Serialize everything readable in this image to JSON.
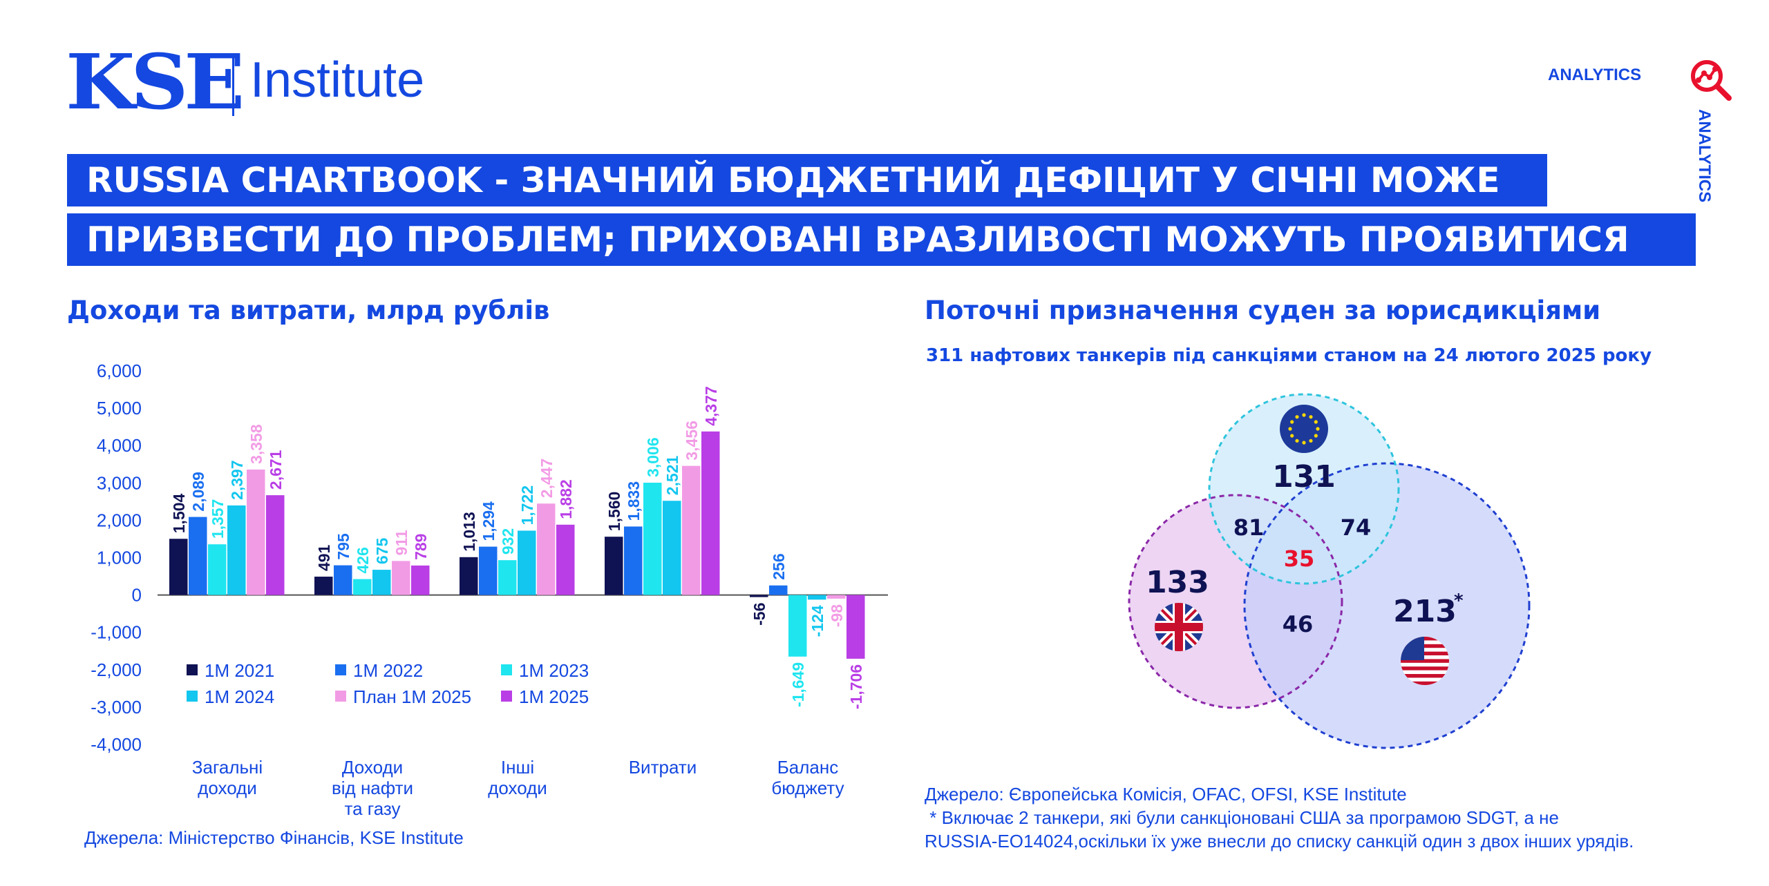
{
  "header": {
    "logo_kse": "KSE",
    "logo_institute": "Institute",
    "analytics": "ANALYTICS",
    "title_line1": "RUSSIA CHARTBOOK - ЗНАЧНИЙ БЮДЖЕТНИЙ ДЕФІЦИТ У СІЧНІ МОЖЕ",
    "title_line2": "ПРИЗВЕСТИ ДО ПРОБЛЕМ; ПРИХОВАНІ ВРАЗЛИВОСТІ МОЖУТЬ ПРОЯВИТИСЯ"
  },
  "colors": {
    "brand": "#1448e0",
    "s2021": "#0f1253",
    "s2022": "#1a6ff0",
    "s2023": "#1fe5ef",
    "s2024": "#12c6ef",
    "plan2025": "#f29be5",
    "s2025": "#b93ee6"
  },
  "left": {
    "title": "Доходи та витрати, млрд рублів",
    "source": "Джерела: Міністерство Фінансів, KSE Institute"
  },
  "right": {
    "title": "Поточні призначення суден за юрисдикціями",
    "subtitle": "311 нафтових танкерів під санкціями станом на 24 лютого 2025 року",
    "source_line1": "Джерело: Європейська Комісія, OFAC, OFSI, KSE Institute",
    "source_line2": " * Включає 2 танкери, які були санкціоновані США за програмою SDGT, а не",
    "source_line3": "RUSSIA-EO14024,оскільки їх уже внесли до списку санкцій один з двох інших урядів."
  },
  "chart_data": [
    {
      "type": "bar",
      "categories": [
        [
          "Загальні",
          "доходи"
        ],
        [
          "Доходи",
          "від нафти",
          "та газу"
        ],
        [
          "Інші",
          "доходи"
        ],
        [
          "Витрати"
        ],
        [
          "Баланс",
          "бюджету"
        ]
      ],
      "series": [
        {
          "name": "1M 2021",
          "color": "#0f1253",
          "values": [
            1504,
            491,
            1013,
            1560,
            -56
          ],
          "labels": [
            "1,504",
            "491",
            "1,013",
            "1,560",
            "-56"
          ]
        },
        {
          "name": "1M 2022",
          "color": "#1a6ff0",
          "values": [
            2089,
            795,
            1294,
            1833,
            256
          ],
          "labels": [
            "2,089",
            "795",
            "1,294",
            "1,833",
            "256"
          ]
        },
        {
          "name": "1M 2023",
          "color": "#1fe5ef",
          "values": [
            1357,
            426,
            932,
            3006,
            -1649
          ],
          "labels": [
            "1,357",
            "426",
            "932",
            "3,006",
            "-1,649"
          ]
        },
        {
          "name": "1M 2024",
          "color": "#12c6ef",
          "values": [
            2397,
            675,
            1722,
            2521,
            -124
          ],
          "labels": [
            "2,397",
            "675",
            "1,722",
            "2,521",
            "-124"
          ]
        },
        {
          "name": "План 1M 2025",
          "color": "#f29be5",
          "values": [
            3358,
            911,
            2447,
            3456,
            -98
          ],
          "labels": [
            "3,358",
            "911",
            "2,447",
            "3,456",
            "-98"
          ]
        },
        {
          "name": "1M 2025",
          "color": "#b93ee6",
          "values": [
            2671,
            789,
            1882,
            4377,
            -1706
          ],
          "labels": [
            "2,671",
            "789",
            "1,882",
            "4,377",
            "-1,706"
          ]
        }
      ],
      "ylim": [
        -4000,
        6000
      ],
      "yticks": [
        "6,000",
        "5,000",
        "4,000",
        "3,000",
        "2,000",
        "1,000",
        "0",
        "-1,000",
        "-2,000",
        "-3,000",
        "-4,000"
      ],
      "legend": "inside-bottom-left",
      "grid": false
    },
    {
      "type": "venn",
      "sets": [
        {
          "name": "EU",
          "flag": "eu-flag",
          "value": "131",
          "color": "#c9e9fb"
        },
        {
          "name": "UK",
          "flag": "uk-flag",
          "value": "133",
          "color": "#e6c3ee"
        },
        {
          "name": "USA",
          "flag": "us-flag",
          "value": "213",
          "marker": "*",
          "color": "#c3cdf9"
        }
      ],
      "intersections": [
        {
          "sets": [
            "EU",
            "UK"
          ],
          "value": "81"
        },
        {
          "sets": [
            "EU",
            "USA"
          ],
          "value": "74"
        },
        {
          "sets": [
            "UK",
            "USA"
          ],
          "value": "46"
        },
        {
          "sets": [
            "EU",
            "UK",
            "USA"
          ],
          "value": "35",
          "color": "#e8112d"
        }
      ]
    }
  ]
}
